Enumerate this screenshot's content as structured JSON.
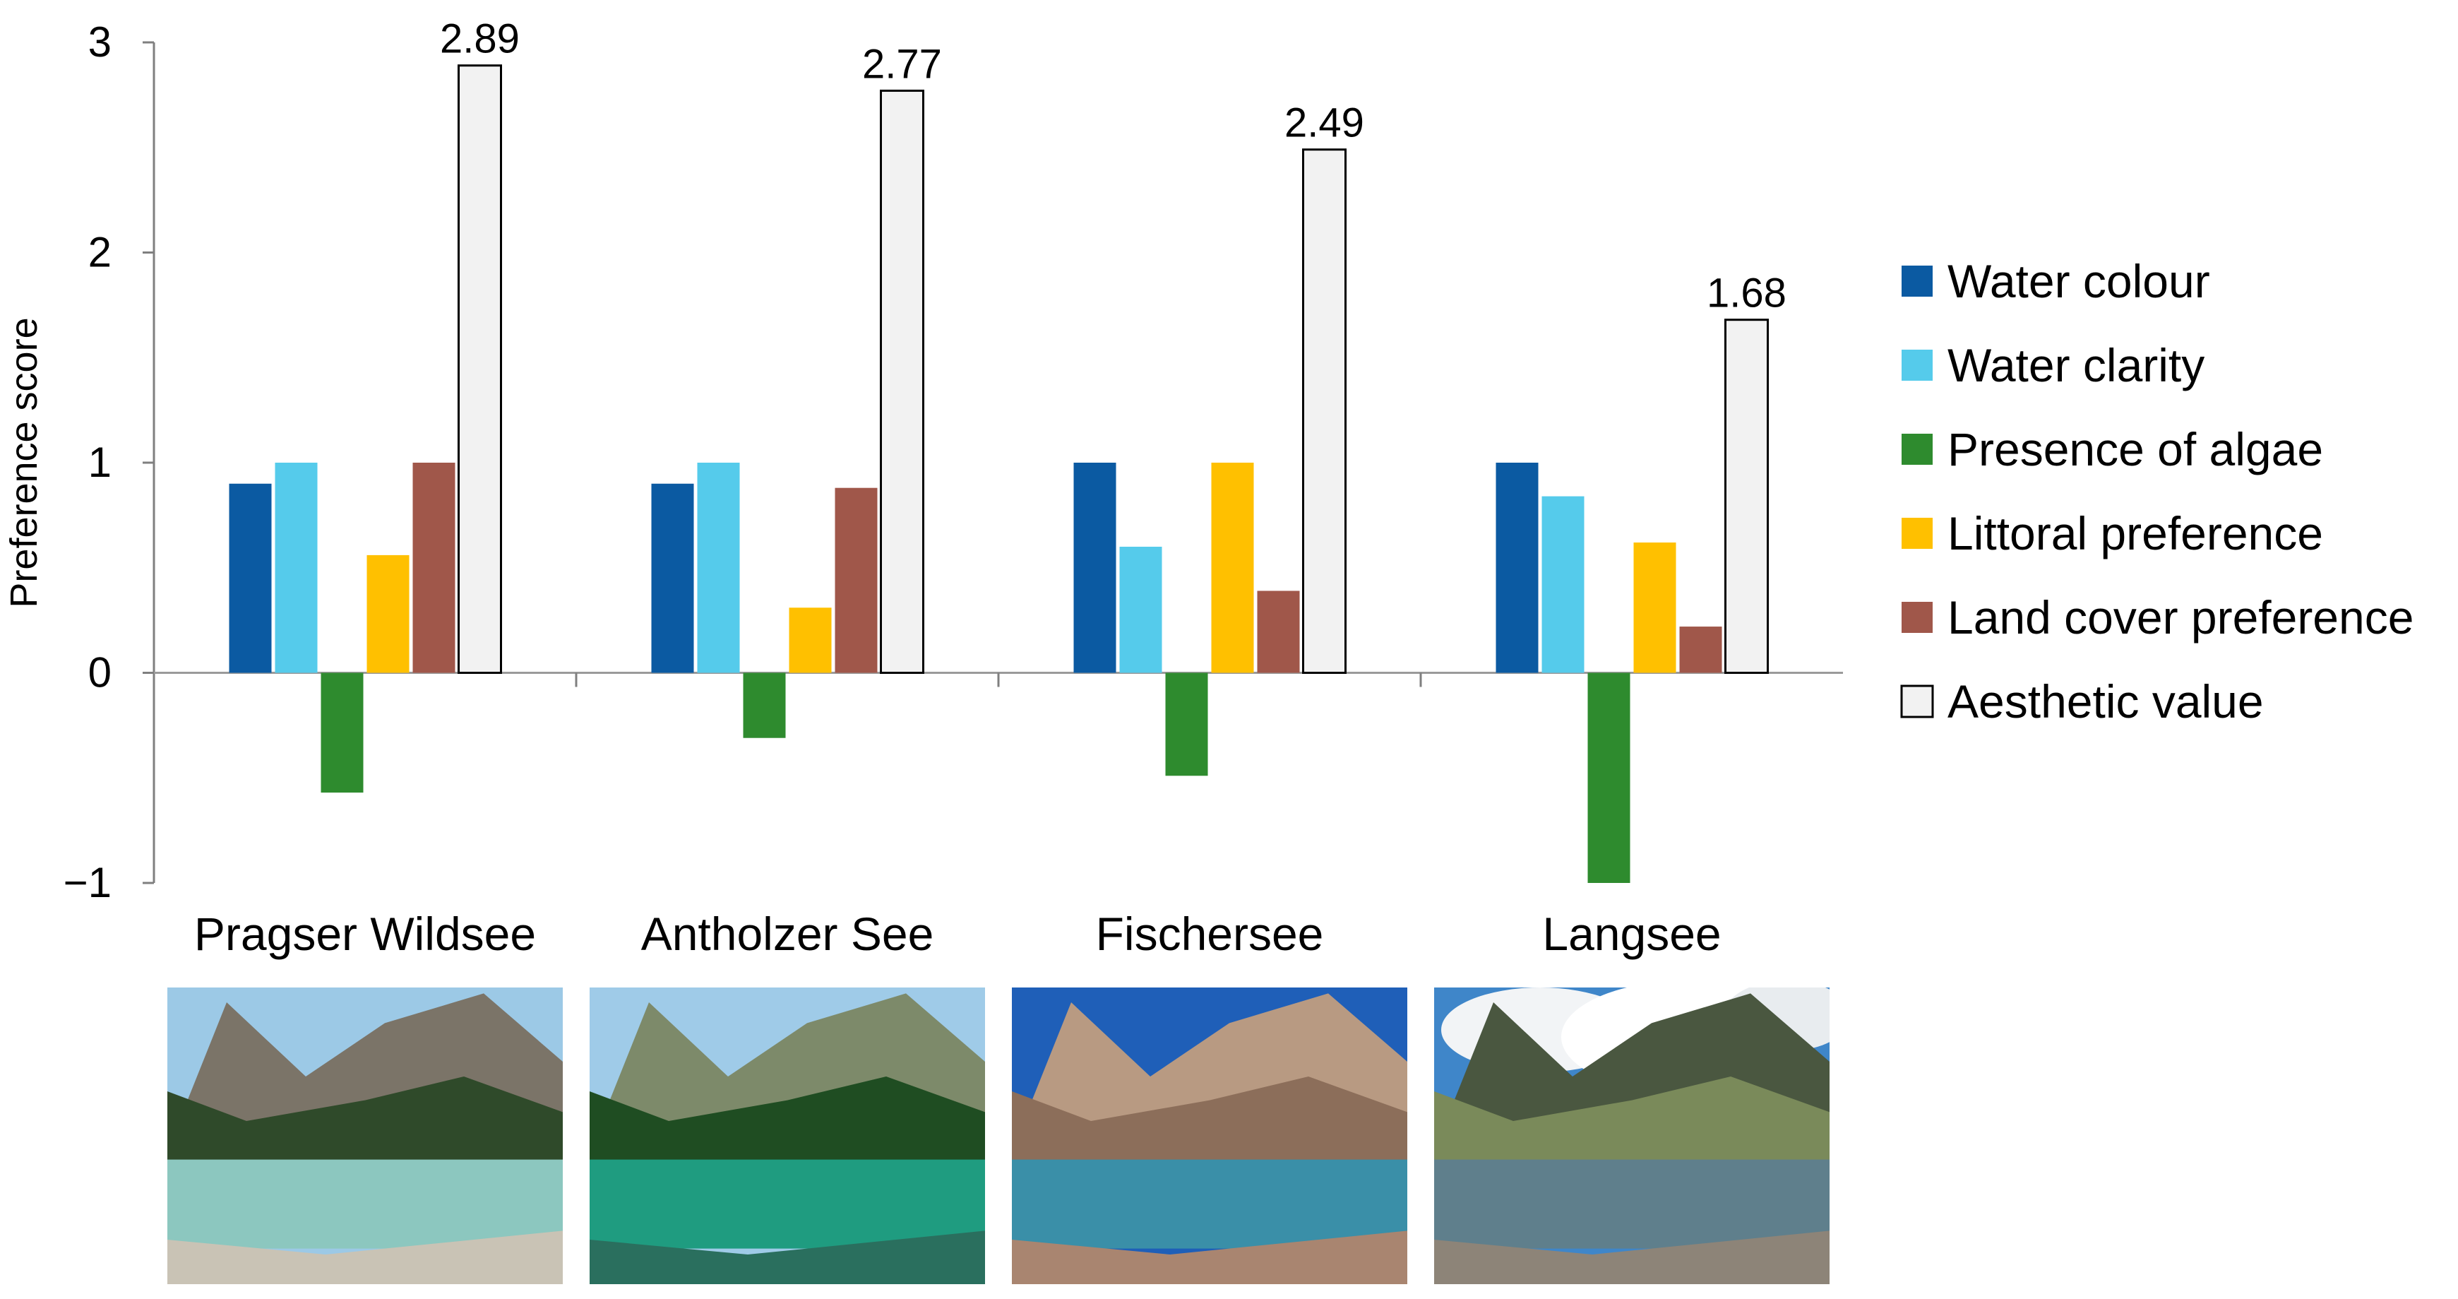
{
  "chart_data": {
    "type": "bar",
    "ylabel": "Preference score",
    "ylim": [
      -1,
      3
    ],
    "yticks": [
      -1,
      0,
      1,
      2,
      3
    ],
    "ytick_labels": [
      "−1",
      "0",
      "1",
      "2",
      "3"
    ],
    "categories": [
      "Pragser Wildsee",
      "Antholzer See",
      "Fischersee",
      "Langsee"
    ],
    "series": [
      {
        "name": "Water colour",
        "color": "#0b5aa2",
        "values": [
          0.9,
          0.9,
          1.0,
          1.0
        ]
      },
      {
        "name": "Water clarity",
        "color": "#55cbeb",
        "values": [
          1.0,
          1.0,
          0.6,
          0.84
        ]
      },
      {
        "name": "Presence of algae",
        "color": "#2e8b2e",
        "values": [
          -0.57,
          -0.31,
          -0.49,
          -1.0
        ]
      },
      {
        "name": "Littoral preference",
        "color": "#ffc000",
        "values": [
          0.56,
          0.31,
          1.0,
          0.62
        ]
      },
      {
        "name": "Land cover preference",
        "color": "#a0574a",
        "values": [
          1.0,
          0.88,
          0.39,
          0.22
        ]
      },
      {
        "name": "Aesthetic value",
        "color": "#f2f2f2",
        "values": [
          2.89,
          2.77,
          2.49,
          1.68
        ]
      }
    ],
    "data_labels": [
      "2.89",
      "2.77",
      "2.49",
      "1.68"
    ],
    "legend_position": "right",
    "grid": false
  },
  "photos": [
    {
      "name": "Pragser Wildsee",
      "sky": "#9cc9e6",
      "mountain": "#7b7468",
      "forest": "#2f4a2a",
      "water": "#8cc7bf",
      "shore": "#c9c3b5"
    },
    {
      "name": "Antholzer See",
      "sky": "#9fcbe8",
      "mountain": "#7d8a6a",
      "forest": "#1f4d22",
      "water": "#1f9c80",
      "shore": "#2a6f5e"
    },
    {
      "name": "Fischersee",
      "sky": "#1f5fb8",
      "mountain": "#b89a82",
      "forest": "#8c6e5a",
      "water": "#3a8fa8",
      "shore": "#a98570"
    },
    {
      "name": "Langsee",
      "sky": "#3f86c9",
      "mountain": "#4a5740",
      "forest": "#7a8a5a",
      "water": "#5f7f8c",
      "shore": "#8d8478"
    }
  ]
}
